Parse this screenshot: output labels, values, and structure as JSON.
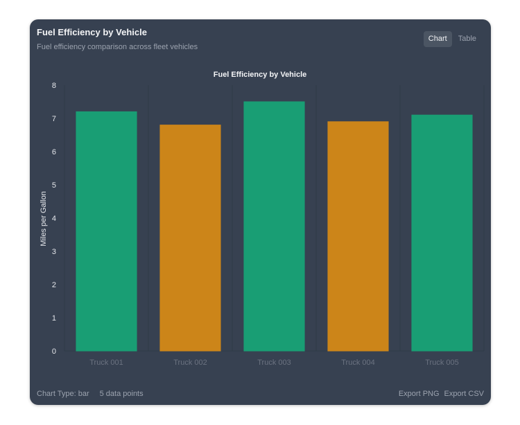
{
  "header": {
    "title": "Fuel Efficiency by Vehicle",
    "subtitle": "Fuel efficiency comparison across fleet vehicles"
  },
  "view_toggle": {
    "chart_label": "Chart",
    "table_label": "Table",
    "active": "chart"
  },
  "footer": {
    "chart_type_label": "Chart Type: bar",
    "data_points_label": "5 data points",
    "export_png_label": "Export PNG",
    "export_csv_label": "Export CSV"
  },
  "colors": {
    "green": "#199e74",
    "orange": "#cc8519",
    "grid": "#2f3a48",
    "axis_text": "#e5e7eb",
    "category_text": "#6b7280"
  },
  "chart_data": {
    "type": "bar",
    "title": "Fuel Efficiency by Vehicle",
    "xlabel": "",
    "ylabel": "Miles per Gallon",
    "categories": [
      "Truck 001",
      "Truck 002",
      "Truck 003",
      "Truck 004",
      "Truck 005"
    ],
    "values": [
      7.2,
      6.8,
      7.5,
      6.9,
      7.1
    ],
    "bar_colors": [
      "#199e74",
      "#cc8519",
      "#199e74",
      "#cc8519",
      "#199e74"
    ],
    "ylim": [
      0,
      8
    ],
    "yticks": [
      0,
      1,
      2,
      3,
      4,
      5,
      6,
      7,
      8
    ],
    "grid": true,
    "legend": "none"
  }
}
